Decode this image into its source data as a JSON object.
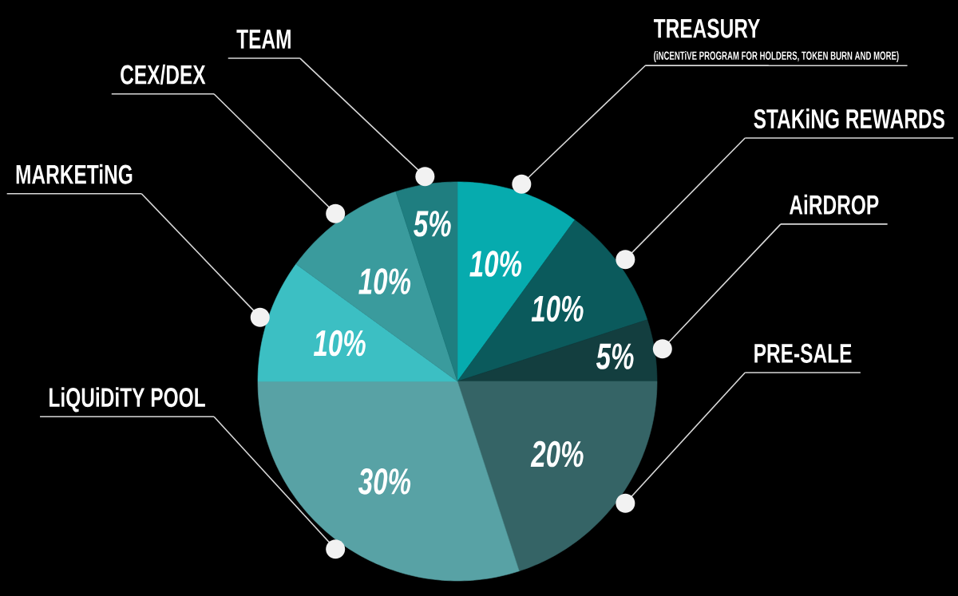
{
  "chart_data": {
    "type": "pie",
    "categories": [
      "TREASURY",
      "STAKiNG REWARDS",
      "AiRDROP",
      "PRE-SALE",
      "LiQUiDiTY POOL",
      "MARKETiNG",
      "CEX/DEX",
      "TEAM"
    ],
    "values": [
      10,
      10,
      5,
      20,
      30,
      10,
      10,
      5
    ],
    "colors": [
      "#06abae",
      "#0b5a5c",
      "#133e3f",
      "#356466",
      "#58a2a5",
      "#3cbfc3",
      "#3a9b9d",
      "#1f7e80"
    ],
    "value_labels": [
      "10%",
      "10%",
      "5%",
      "20%",
      "30%",
      "10%",
      "10%",
      "5%"
    ],
    "annotations": [
      "(iNCENTiVE PROGRAM FOR HOLDERS, TOKEN BURN AND MORE)"
    ]
  }
}
